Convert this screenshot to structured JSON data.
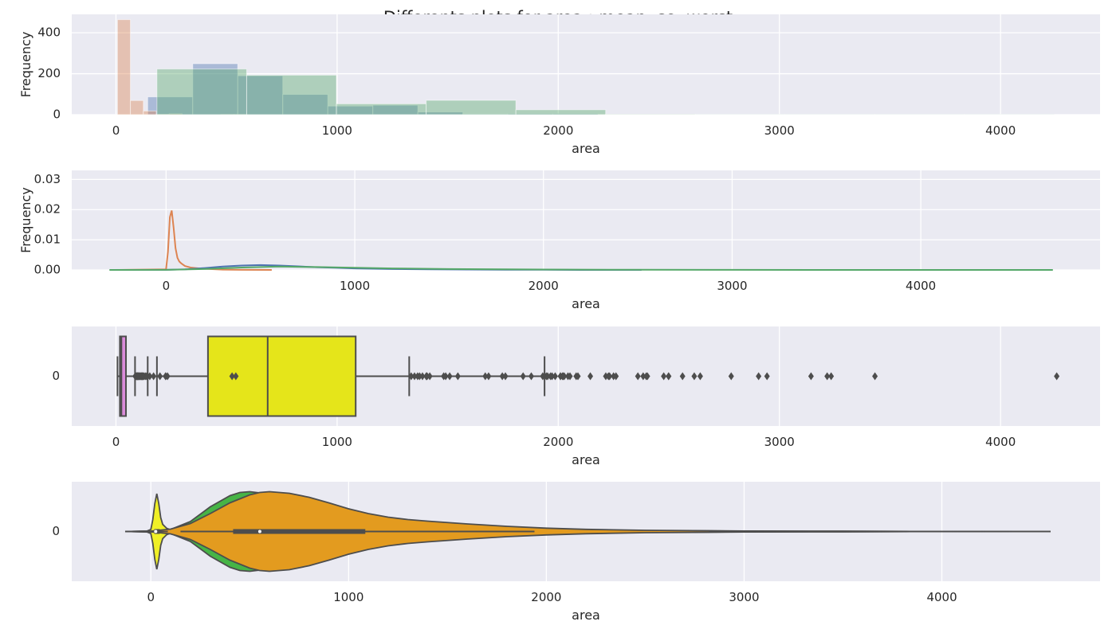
{
  "title": "Differents plots for area : mean, se, worst",
  "colors": {
    "mean": "#4c72b0",
    "se": "#dd8452",
    "worst": "#55a868",
    "box_mean": "#e5e51a",
    "box_se": "#da8bda",
    "box_worst": "#e5e51a",
    "violin_mean": "#f0f026",
    "violin_se": "#f0f026",
    "violin_worst": "#46b446",
    "violin_top": "#e39b1f",
    "panel_bg": "#eaeaf2",
    "line": "#4d4d4d"
  },
  "chart_data": [
    {
      "type": "histogram",
      "xlabel": "area",
      "ylabel": "Frequency",
      "xlim": [
        -200,
        4450
      ],
      "ylim": [
        0,
        490
      ],
      "xticks": [
        0,
        1000,
        2000,
        3000,
        4000
      ],
      "yticks": [
        0,
        200,
        400
      ],
      "grid": true,
      "series": [
        {
          "key": "mean",
          "bin_start": 143.5,
          "bin_width": 203.6,
          "counts": [
            87,
            249,
            190,
            99,
            42,
            46,
            13,
            3,
            5,
            5
          ]
        },
        {
          "key": "se",
          "bin_start": 6.8,
          "bin_width": 58.5,
          "counts": [
            464,
            69,
            18,
            2,
            4,
            0,
            0,
            0,
            1,
            1
          ]
        },
        {
          "key": "worst",
          "bin_start": 185.2,
          "bin_width": 405.8,
          "counts": [
            223,
            193,
            53,
            70,
            24,
            2,
            1,
            1,
            1,
            1
          ]
        }
      ]
    },
    {
      "type": "density",
      "xlabel": "area",
      "ylabel": "Frequency",
      "xlim": [
        -500,
        4950
      ],
      "ylim": [
        0,
        0.033
      ],
      "xticks": [
        0,
        1000,
        2000,
        3000,
        4000
      ],
      "yticks": [
        0,
        0.01,
        0.02,
        0.03
      ],
      "ytick_labels": [
        "0.00",
        "0.01",
        "0.02",
        "0.03"
      ],
      "grid": true,
      "series": [
        {
          "key": "se",
          "x": [
            -250,
            0,
            10,
            20,
            30,
            40,
            50,
            60,
            70,
            80,
            100,
            130,
            160,
            200,
            300,
            400,
            560
          ],
          "y": [
            0,
            0.0002,
            0.006,
            0.0175,
            0.0197,
            0.014,
            0.0072,
            0.004,
            0.0028,
            0.0022,
            0.0013,
            0.0008,
            0.0006,
            0.0004,
            0.0001,
            3e-05,
            0
          ]
        },
        {
          "key": "mean",
          "x": [
            -280,
            0,
            100,
            200,
            300,
            400,
            500,
            600,
            700,
            800,
            900,
            1000,
            1200,
            1400,
            1600,
            1800,
            2000,
            2200,
            2520
          ],
          "y": [
            0,
            2e-05,
            0.0002,
            0.0006,
            0.0011,
            0.00145,
            0.0016,
            0.00145,
            0.0012,
            0.0009,
            0.0007,
            0.0005,
            0.0003,
            0.0002,
            0.00012,
            8e-05,
            4e-05,
            1e-05,
            0
          ]
        },
        {
          "key": "worst",
          "x": [
            -300,
            0,
            200,
            400,
            600,
            800,
            1000,
            1200,
            1500,
            1800,
            2000,
            2500,
            3000,
            3500,
            4000,
            4700
          ],
          "y": [
            0,
            2e-05,
            0.0003,
            0.0008,
            0.0011,
            0.00095,
            0.0007,
            0.0005,
            0.0003,
            0.00018,
            0.00012,
            5e-05,
            2e-05,
            1e-05,
            5e-06,
            0
          ]
        }
      ]
    },
    {
      "type": "boxplot",
      "xlabel": "area",
      "ylabel": "",
      "xlim": [
        -200,
        4450
      ],
      "xticks": [
        0,
        1000,
        2000,
        3000,
        4000
      ],
      "ytick_labels": [
        "0"
      ],
      "grid": true,
      "boxes": [
        {
          "key": "box_mean",
          "q1": 420,
          "median": 551,
          "q3": 782,
          "whisker_low": 143.5,
          "whisker_high": 1326,
          "outliers": [
            1335,
            1350,
            1364,
            1373,
            1386,
            1403,
            1404,
            1407,
            1419,
            1482,
            1491,
            1509,
            1546,
            1670,
            1685,
            1747,
            1761,
            1841,
            1878,
            1930,
            2010,
            2250,
            2499
          ]
        },
        {
          "key": "box_worst",
          "q1": 416,
          "median": 686,
          "q3": 1084,
          "whisker_low": 185.2,
          "whisker_high": 1938,
          "outliers": [
            1946,
            1952,
            1965,
            1972,
            1986,
            2010,
            2019,
            2022,
            2027,
            2044,
            2053,
            2081,
            2089,
            2145,
            2215,
            2227,
            2232,
            2261,
            2360,
            2384,
            2398,
            2403,
            2477,
            2499,
            2562,
            2615,
            2642,
            2782,
            2906,
            2944,
            3143,
            3216,
            3234,
            3432,
            4254
          ]
        },
        {
          "key": "box_se",
          "q1": 17.8,
          "median": 24.5,
          "q3": 45.2,
          "whisker_low": 6.8,
          "whisker_high": 86.2,
          "outliers": [
            87,
            90,
            92,
            93,
            94,
            96,
            97,
            98,
            99,
            100,
            102,
            104,
            106,
            108,
            110,
            112,
            115,
            116,
            118,
            120,
            122,
            124,
            128,
            134,
            139,
            143,
            153,
            170,
            199,
            224,
            225,
            233,
            525,
            542
          ]
        }
      ]
    },
    {
      "type": "violin",
      "xlabel": "area",
      "ylabel": "",
      "xlim": [
        -400,
        4800
      ],
      "xticks": [
        0,
        1000,
        2000,
        3000,
        4000
      ],
      "ytick_labels": [
        "0"
      ],
      "grid": true,
      "violins": [
        {
          "key": "violin_worst",
          "x": [
            -130,
            0,
            100,
            200,
            300,
            400,
            450,
            500,
            550,
            600,
            700,
            800,
            900,
            1000,
            1100,
            1200,
            1400,
            1600,
            1800,
            2000,
            2200,
            2500,
            3000,
            3500,
            4000,
            4550
          ],
          "w": [
            0,
            0.01,
            0.05,
            0.25,
            0.62,
            0.9,
            0.98,
            1.0,
            0.97,
            0.92,
            0.78,
            0.62,
            0.47,
            0.36,
            0.3,
            0.26,
            0.2,
            0.14,
            0.09,
            0.06,
            0.035,
            0.02,
            0.01,
            0.006,
            0.003,
            0
          ],
          "median": 686,
          "q1": 416,
          "q3": 1084,
          "wlo": 150,
          "whi": 1940
        },
        {
          "key": "violin_se",
          "x": [
            -130,
            -20,
            0,
            10,
            20,
            30,
            40,
            50,
            60,
            80,
            100,
            150,
            200
          ],
          "w": [
            0,
            0.01,
            0.05,
            0.3,
            0.7,
            0.95,
            0.7,
            0.35,
            0.18,
            0.08,
            0.04,
            0.01,
            0
          ],
          "median": 24.5,
          "q1": 17.8,
          "q3": 45.2,
          "wlo": 6.8,
          "whi": 86
        },
        {
          "key": "violin_top",
          "x": [
            -130,
            0,
            100,
            200,
            300,
            400,
            500,
            550,
            600,
            700,
            800,
            900,
            1000,
            1100,
            1200,
            1300,
            1400,
            1600,
            1800,
            2000,
            2200,
            2500,
            3000,
            3500,
            4000,
            4550
          ],
          "w": [
            0,
            0.01,
            0.06,
            0.2,
            0.45,
            0.72,
            0.92,
            0.98,
            1.0,
            0.96,
            0.86,
            0.72,
            0.57,
            0.45,
            0.36,
            0.3,
            0.26,
            0.19,
            0.13,
            0.085,
            0.055,
            0.03,
            0.012,
            0.006,
            0.003,
            0
          ],
          "median": 551,
          "q1": 420,
          "q3": 1084,
          "wlo": 150,
          "whi": 1940
        }
      ]
    }
  ]
}
